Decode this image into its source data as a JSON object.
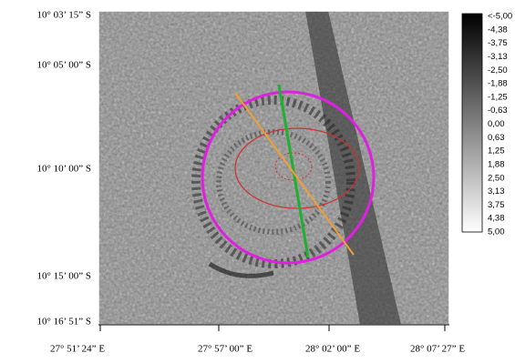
{
  "map": {
    "y_labels": [
      "10° 03’ 15” S",
      "10° 05’ 00” S",
      "10° 10’ 00” S",
      "10° 15’ 00” S",
      "10° 16’ 51” S"
    ],
    "x_labels": [
      "27° 51’ 24” E",
      "27° 57’ 00” E",
      "28° 02’ 00” E",
      "28° 07’ 27” E"
    ]
  },
  "colorbar": {
    "labels": [
      "<-5,00",
      "-4,38",
      "-3,75",
      "-3,13",
      "-2,50",
      "-1,88",
      "-1,25",
      "-0,63",
      "0,00",
      "0,63",
      "1,25",
      "1,88",
      "2,50",
      "3,13",
      "3,75",
      "4,38",
      "5,00"
    ]
  }
}
